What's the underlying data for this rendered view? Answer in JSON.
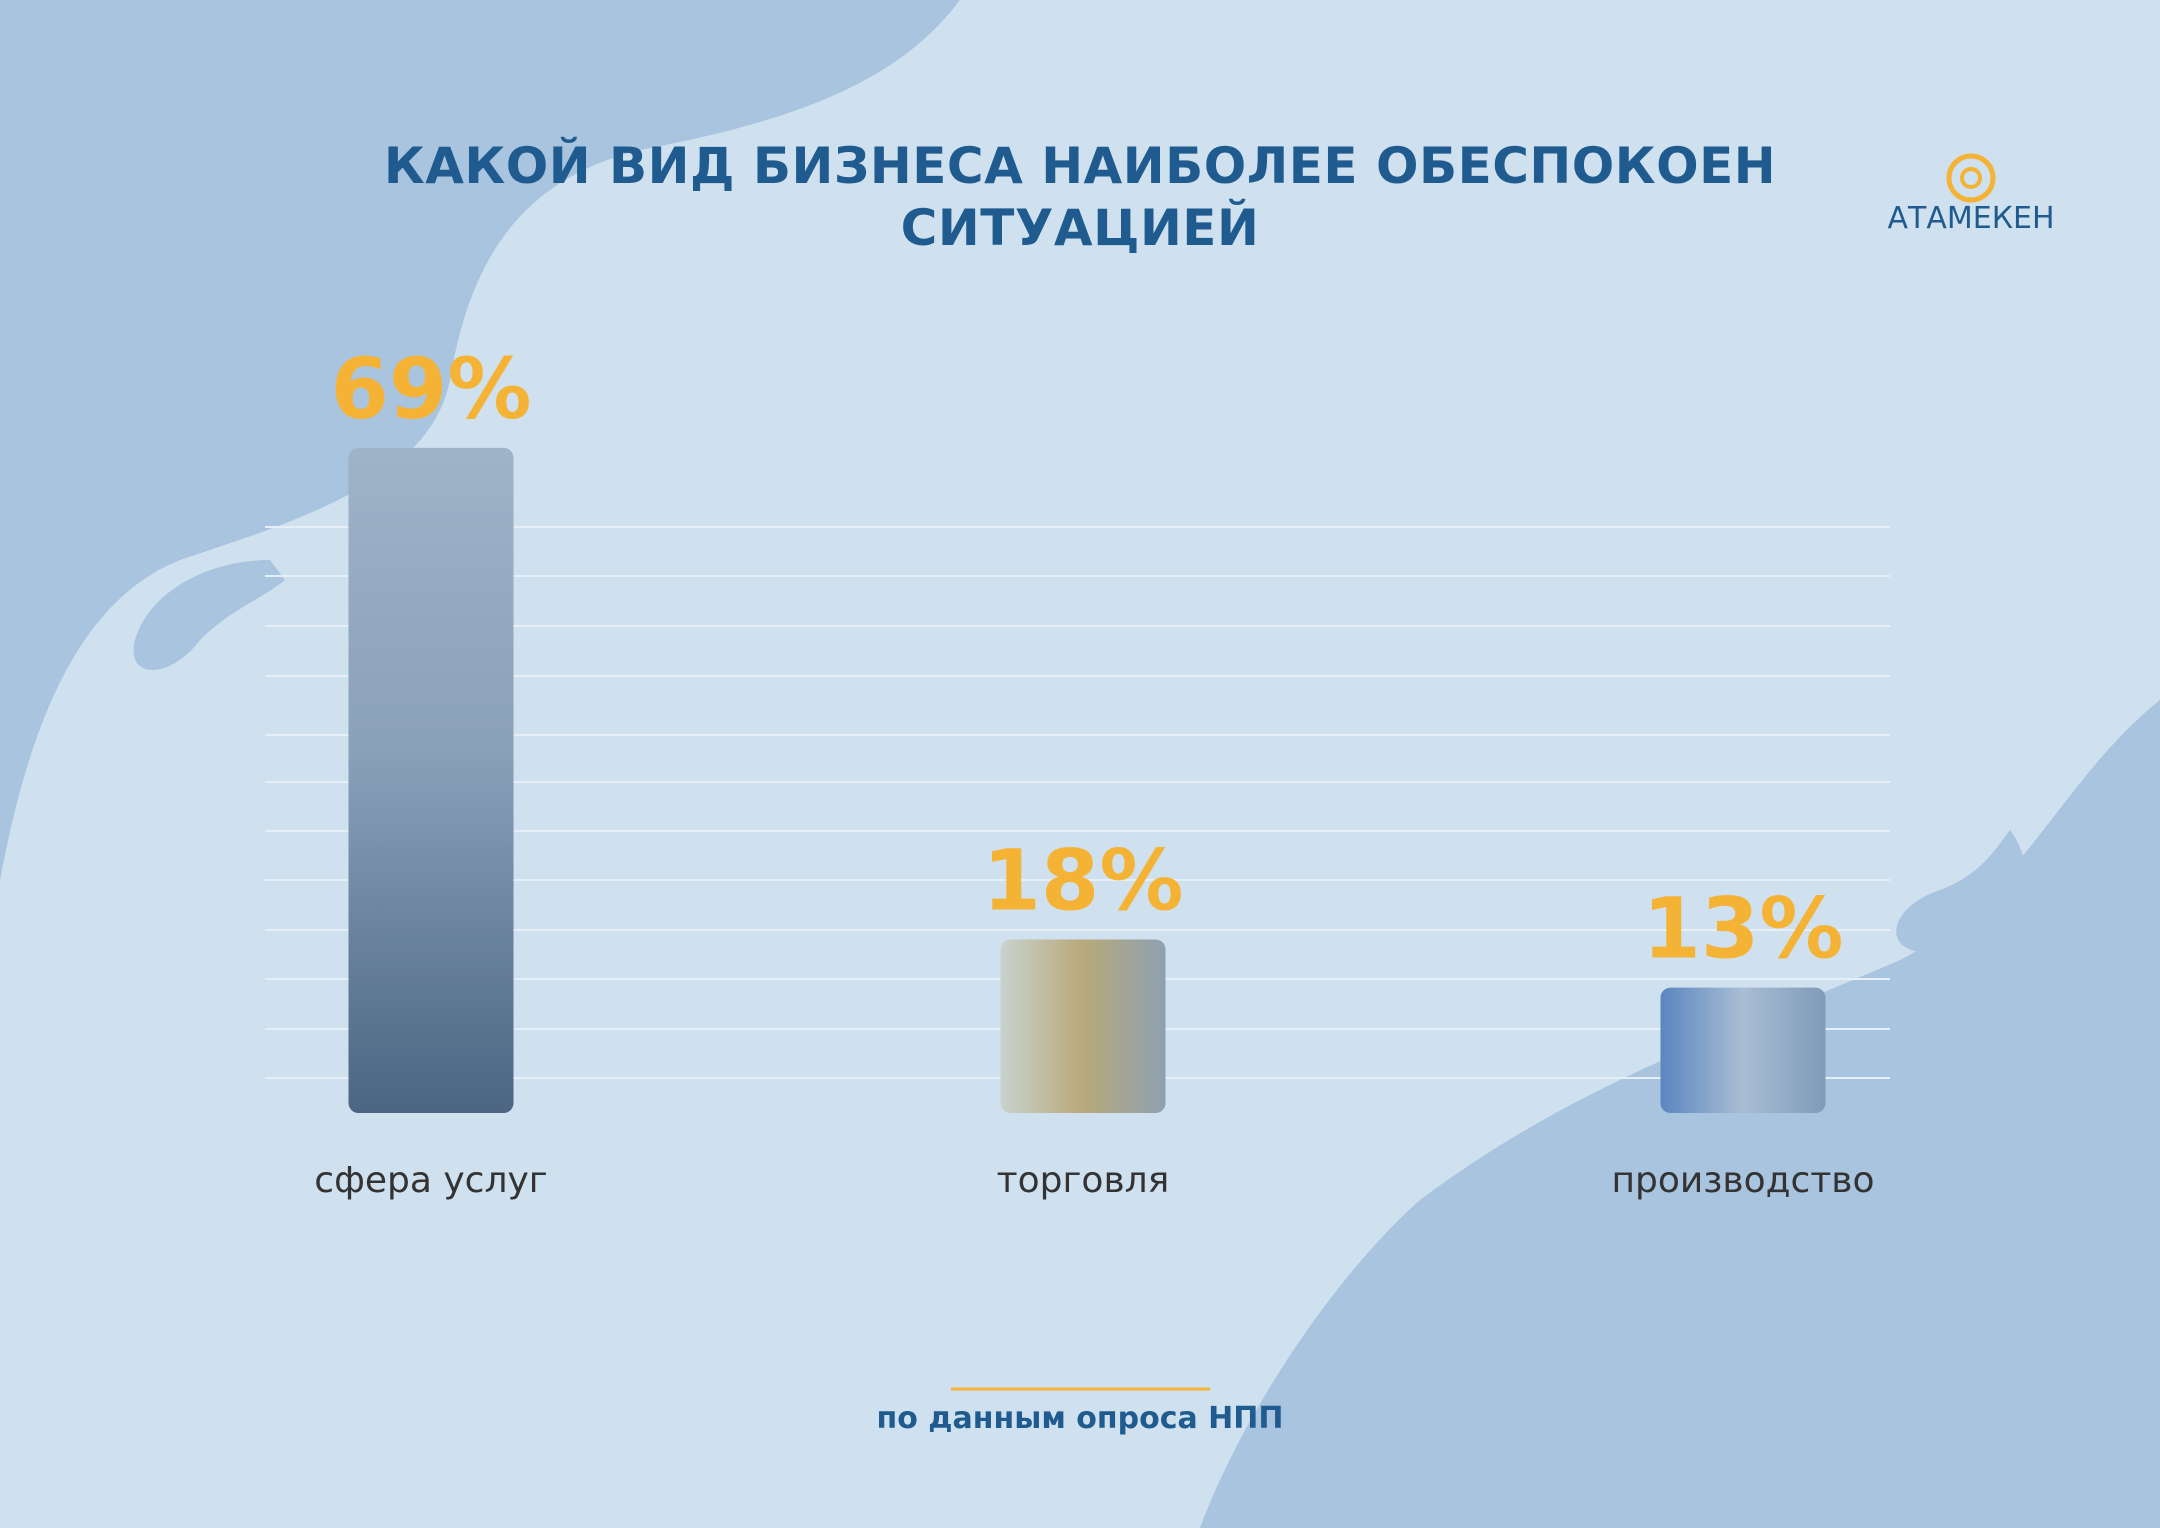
{
  "chart_data": {
    "type": "bar",
    "title": "КАКОЙ ВИД БИЗНЕСА НАИБОЛЕЕ ОБЕСПОКОЕН СИТУАЦИЕЙ",
    "categories": [
      "сфера услуг",
      "торговля",
      "производство"
    ],
    "values": [
      69,
      18,
      13
    ],
    "value_labels": [
      "69%",
      "18%",
      "13%"
    ],
    "color": "#7f9bb8",
    "label_color": "#f5b335",
    "footnote": "по данным опроса НПП",
    "logo": "АТАМЕКЕН"
  }
}
